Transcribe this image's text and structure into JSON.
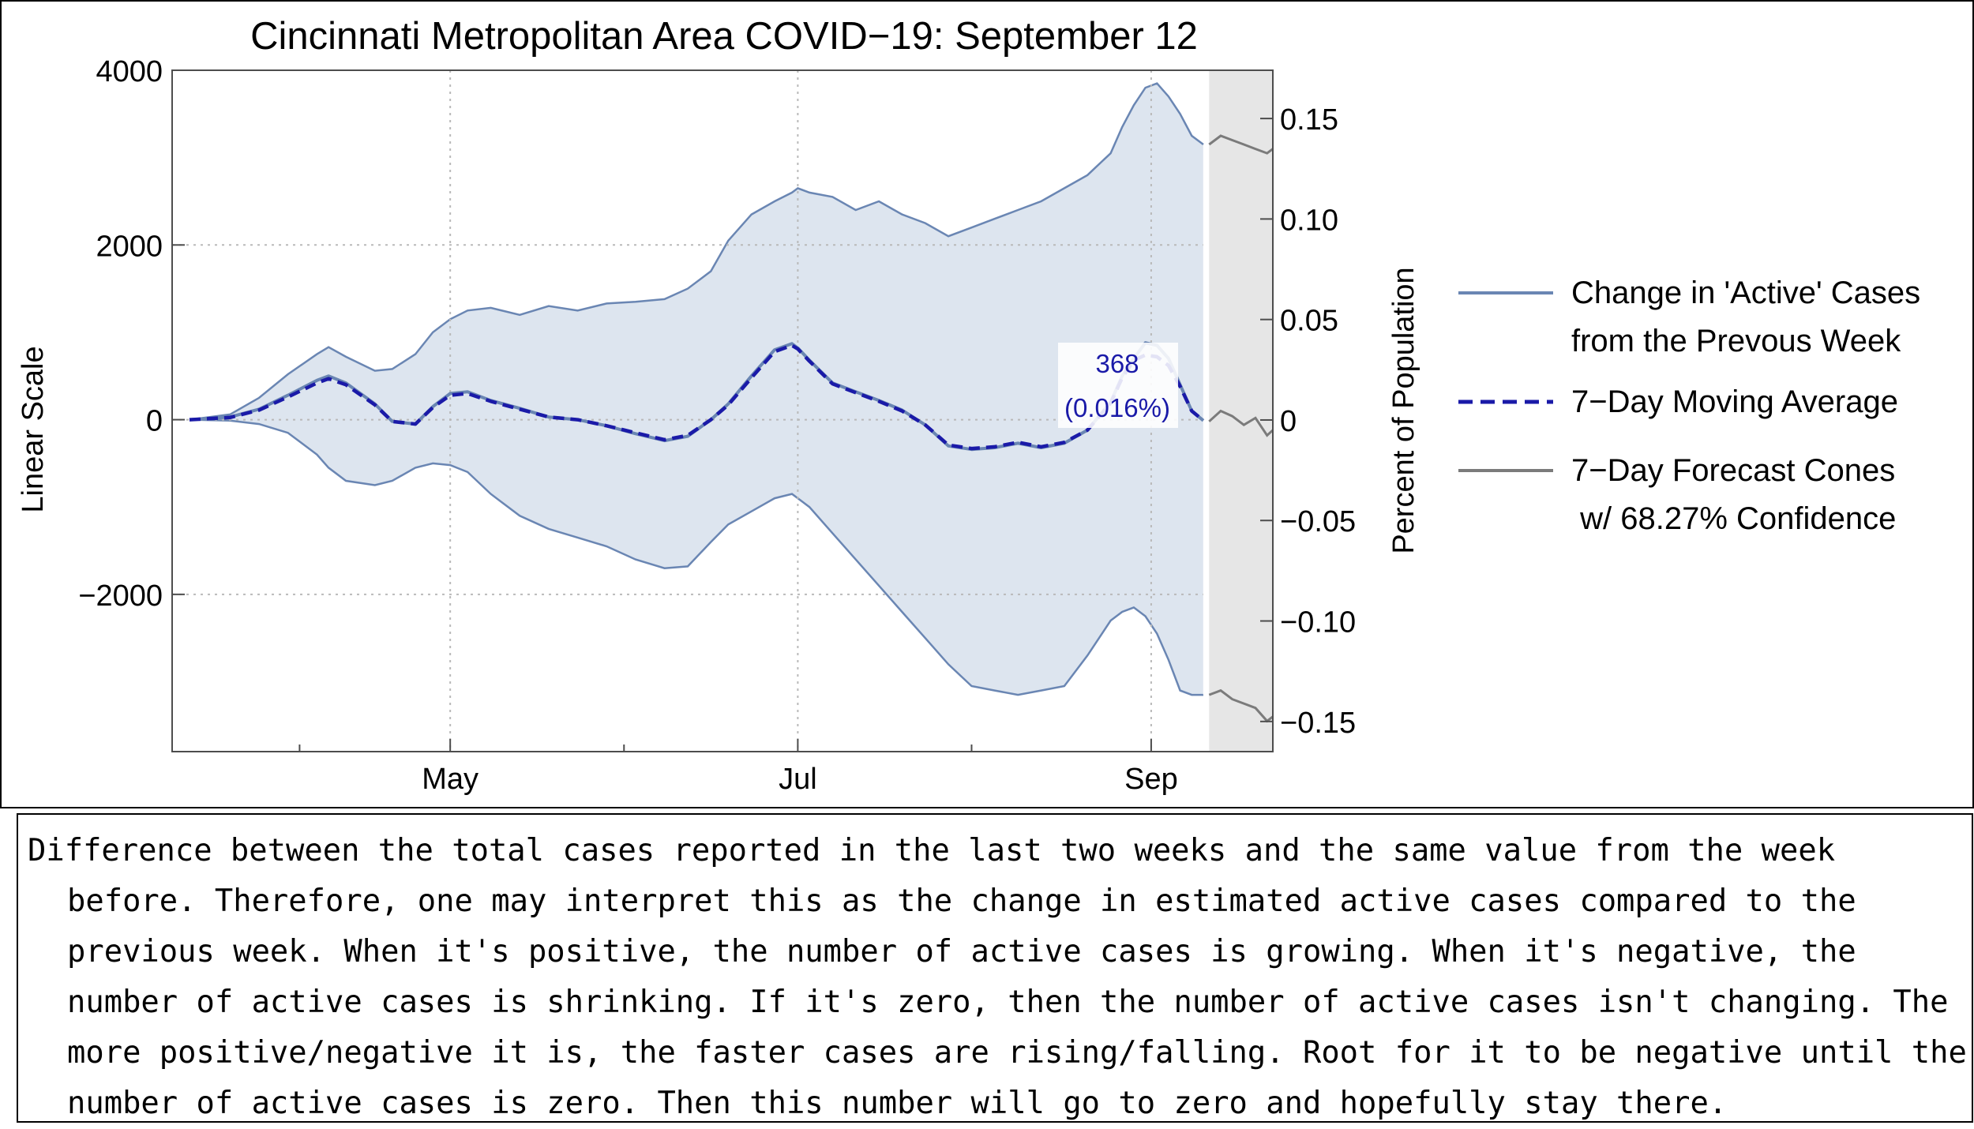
{
  "chart_data": {
    "type": "area",
    "title": "Cincinnati Metropolitan Area COVID−19: September 12",
    "ylabel": "Linear Scale",
    "ylabel_right": "Percent of Population",
    "xlim": [
      0,
      190
    ],
    "ylim": [
      -3800,
      4000
    ],
    "ylim_right": [
      -0.165,
      0.174
    ],
    "x_ticks": [
      {
        "x": 48,
        "label": "May"
      },
      {
        "x": 108,
        "label": "Jul"
      },
      {
        "x": 169,
        "label": "Sep"
      }
    ],
    "x_minor_ticks": [
      22,
      78,
      138
    ],
    "y_ticks": [
      {
        "y": 4000,
        "label": "4000"
      },
      {
        "y": 2000,
        "label": "2000"
      },
      {
        "y": 0,
        "label": "0"
      },
      {
        "y": -2000,
        "label": "−2000"
      }
    ],
    "y_ticks_right": [
      {
        "y": 0.15,
        "label": "0.15"
      },
      {
        "y": 0.1,
        "label": "0.10"
      },
      {
        "y": 0.05,
        "label": "0.05"
      },
      {
        "y": 0,
        "label": "0"
      },
      {
        "y": -0.05,
        "label": "−0.05"
      },
      {
        "y": -0.1,
        "label": "−0.10"
      },
      {
        "y": -0.15,
        "label": "−0.15"
      }
    ],
    "grid": true,
    "grid_x": [
      48,
      108,
      169
    ],
    "grid_y": [
      2000,
      0,
      -2000
    ],
    "series": [
      {
        "name": "Change in 'Active' Cases\nfrom the Prevous Week",
        "style": "solid",
        "color": "#6a86b3",
        "x": [
          3,
          10,
          15,
          20,
          25,
          27,
          30,
          35,
          38,
          42,
          45,
          48,
          51,
          55,
          60,
          65,
          70,
          75,
          80,
          85,
          89,
          93,
          96,
          100,
          104,
          107,
          108,
          110,
          114,
          118,
          122,
          126,
          130,
          134,
          138,
          142,
          146,
          150,
          154,
          158,
          162,
          164,
          166,
          168,
          170,
          172,
          174,
          176,
          178
        ],
        "y": [
          0,
          30,
          120,
          280,
          450,
          500,
          420,
          180,
          -20,
          -50,
          150,
          300,
          320,
          220,
          130,
          30,
          0,
          -70,
          -160,
          -240,
          -190,
          0,
          180,
          500,
          800,
          870,
          820,
          680,
          420,
          320,
          220,
          110,
          -60,
          -300,
          -340,
          -320,
          -270,
          -320,
          -270,
          -120,
          200,
          500,
          700,
          880,
          850,
          700,
          400,
          100,
          -10
        ]
      },
      {
        "name": "7−Day Moving Average",
        "style": "dashed",
        "color": "#1a1aa8",
        "x": [
          3,
          10,
          15,
          20,
          25,
          27,
          30,
          35,
          38,
          42,
          45,
          48,
          51,
          55,
          60,
          65,
          70,
          75,
          80,
          85,
          89,
          93,
          96,
          100,
          104,
          107,
          108,
          110,
          114,
          118,
          122,
          126,
          130,
          134,
          138,
          142,
          146,
          150,
          154,
          158,
          162,
          164,
          166,
          168,
          170,
          172,
          174,
          176,
          178
        ],
        "y": [
          0,
          25,
          110,
          260,
          420,
          470,
          400,
          170,
          -20,
          -50,
          140,
          280,
          300,
          210,
          120,
          30,
          0,
          -70,
          -150,
          -230,
          -180,
          0,
          170,
          480,
          780,
          850,
          810,
          670,
          410,
          310,
          210,
          100,
          -60,
          -290,
          -330,
          -310,
          -260,
          -310,
          -260,
          -120,
          190,
          480,
          680,
          740,
          720,
          620,
          380,
          100,
          -10
        ]
      }
    ],
    "confidence_band": {
      "x": [
        3,
        10,
        15,
        20,
        25,
        27,
        30,
        35,
        38,
        42,
        45,
        48,
        51,
        55,
        60,
        65,
        70,
        75,
        80,
        85,
        89,
        93,
        96,
        100,
        104,
        107,
        108,
        110,
        114,
        118,
        122,
        126,
        130,
        134,
        138,
        142,
        146,
        150,
        154,
        158,
        162,
        164,
        166,
        168,
        170,
        172,
        174,
        176,
        178
      ],
      "upper": [
        0,
        60,
        250,
        520,
        750,
        830,
        720,
        560,
        580,
        750,
        1000,
        1150,
        1250,
        1280,
        1200,
        1300,
        1250,
        1330,
        1350,
        1380,
        1500,
        1700,
        2050,
        2350,
        2500,
        2600,
        2650,
        2600,
        2550,
        2400,
        2500,
        2350,
        2250,
        2100,
        2200,
        2300,
        2400,
        2500,
        2650,
        2800,
        3050,
        3350,
        3600,
        3800,
        3850,
        3700,
        3500,
        3250,
        3150
      ],
      "lower": [
        0,
        -10,
        -50,
        -150,
        -400,
        -550,
        -700,
        -750,
        -700,
        -550,
        -500,
        -520,
        -600,
        -850,
        -1100,
        -1250,
        -1350,
        -1450,
        -1600,
        -1700,
        -1680,
        -1400,
        -1200,
        -1050,
        -900,
        -850,
        -900,
        -1000,
        -1300,
        -1600,
        -1900,
        -2200,
        -2500,
        -2800,
        -3050,
        -3100,
        -3150,
        -3100,
        -3050,
        -2700,
        -2300,
        -2200,
        -2150,
        -2250,
        -2450,
        -2750,
        -3100,
        -3150,
        -3150
      ]
    },
    "forecast": {
      "name": "7−Day Forecast Cones\n w/ 68.27% Confidence",
      "color": "#7b7b7b",
      "band_color": "#e6e6e6",
      "x_start": 179,
      "x_end": 190,
      "upper": {
        "x": [
          179,
          181,
          183,
          185,
          187,
          189,
          190
        ],
        "y": [
          3150,
          3250,
          3200,
          3150,
          3100,
          3050,
          3100
        ]
      },
      "middle": {
        "x": [
          179,
          181,
          183,
          185,
          187,
          189,
          190
        ],
        "y": [
          -20,
          100,
          40,
          -60,
          20,
          -180,
          -120
        ]
      },
      "lower": {
        "x": [
          179,
          181,
          183,
          185,
          187,
          189,
          190
        ],
        "y": [
          -3150,
          -3100,
          -3200,
          -3250,
          -3300,
          -3450,
          -3400
        ]
      }
    },
    "annotation": {
      "x": 165,
      "y": 735,
      "value": "368",
      "percent": "(0.016%)",
      "color": "#1a1aa8"
    },
    "legend_position": "right",
    "colors": {
      "band": "#dde5ef",
      "band_edge": "#6a86b3",
      "grid": "#b9b9b9",
      "frame": "#4d4d4d"
    }
  },
  "caption": "Difference between the total cases reported in the last two weeks and the same value from the week before. Therefore, one may interpret this as the change in estimated active cases compared to the previous week. When it's positive, the number of active cases is growing. When it's negative, the number of active cases is shrinking. If it's zero, then the number of active cases isn't changing. The more positive/negative it is, the faster cases are rising/falling. Root for it to be negative until the number of active cases is zero. Then this number will go to zero and hopefully stay there."
}
